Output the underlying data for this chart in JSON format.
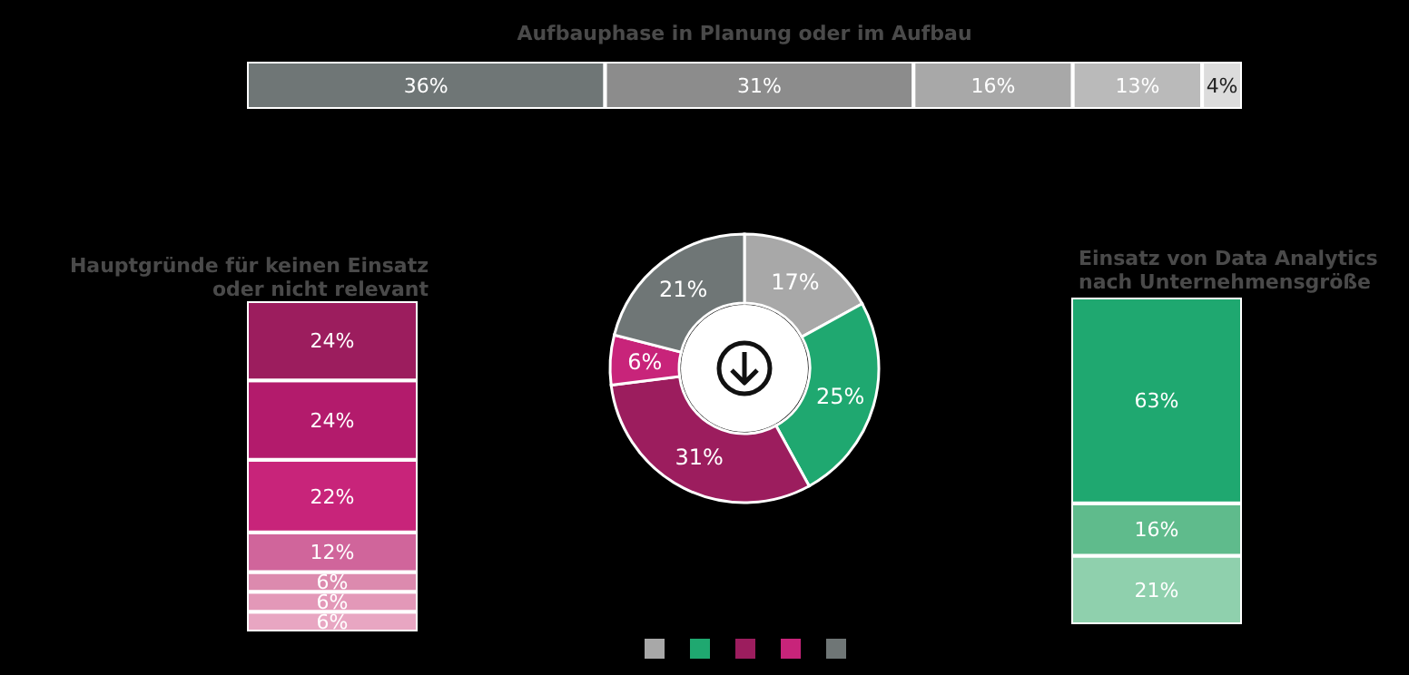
{
  "chart_data": [
    {
      "type": "bar",
      "orientation": "horizontal",
      "stacked": true,
      "title": "Aufbauphase in Planung oder im Aufbau",
      "categories": [
        null
      ],
      "tick_labels": false,
      "series": [
        {
          "color": "#6f7676",
          "values": [
            36
          ],
          "value_labels": [
            "36%"
          ]
        },
        {
          "color": "#8c8c8c",
          "values": [
            31
          ],
          "value_labels": [
            "31%"
          ]
        },
        {
          "color": "#a8a8a8",
          "values": [
            16
          ],
          "value_labels": [
            "16%"
          ]
        },
        {
          "color": "#bababa",
          "values": [
            13
          ],
          "value_labels": [
            "13%"
          ]
        },
        {
          "color": "#dcdcdc",
          "values": [
            4
          ],
          "value_labels": [
            "4%"
          ]
        }
      ]
    },
    {
      "type": "bar",
      "stacked": true,
      "title": "Hauptgründe für keinen Einsatz oder nicht relevant",
      "categories": [
        null
      ],
      "tick_labels": false,
      "series": [
        {
          "color": "#e8a6c2",
          "values": [
            6
          ],
          "value_labels": [
            "6%"
          ]
        },
        {
          "color": "#e398b8",
          "values": [
            6
          ],
          "value_labels": [
            "6%"
          ]
        },
        {
          "color": "#dc8aae",
          "values": [
            6
          ],
          "value_labels": [
            "6%"
          ]
        },
        {
          "color": "#d0659b",
          "values": [
            12
          ],
          "value_labels": [
            "12%"
          ]
        },
        {
          "color": "#c8247a",
          "values": [
            22
          ],
          "value_labels": [
            "22%"
          ]
        },
        {
          "color": "#b31b6c",
          "values": [
            24
          ],
          "value_labels": [
            "24%"
          ]
        },
        {
          "color": "#9c1d5e",
          "values": [
            24
          ],
          "value_labels": [
            "24%"
          ]
        }
      ]
    },
    {
      "type": "donut",
      "categories": [
        null,
        null,
        null,
        null,
        null
      ],
      "values": [
        17,
        25,
        31,
        6,
        21
      ],
      "value_labels": [
        "17%",
        "25%",
        "31%",
        "6%",
        "21%"
      ],
      "colors": [
        "#a8a8a8",
        "#1fa870",
        "#9c1d5e",
        "#c8247a",
        "#6f7676"
      ]
    },
    {
      "type": "bar",
      "stacked": true,
      "title": "Einsatz von Data Analytics nach Unternehmensgröße",
      "categories": [
        null
      ],
      "tick_labels": false,
      "series": [
        {
          "color": "#8fd0ad",
          "values": [
            21
          ],
          "value_labels": [
            "21%"
          ]
        },
        {
          "color": "#5fbb8c",
          "values": [
            16
          ],
          "value_labels": [
            "16%"
          ]
        },
        {
          "color": "#1fa870",
          "values": [
            63
          ],
          "value_labels": [
            "63%"
          ]
        }
      ]
    }
  ]
}
